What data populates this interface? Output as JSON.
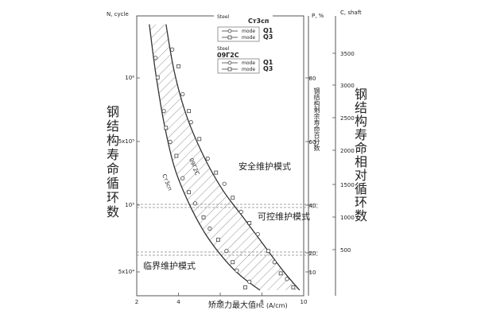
{
  "chart_data": {
    "type": "scatter",
    "left_axis_title": "N, cycle",
    "left_axis_ticks": [
      "10⁶",
      "5x10⁵",
      "10⁵",
      "5x10⁴"
    ],
    "left_axis_label": "钢结构寿命循环数",
    "middle_axis_title": "P, %",
    "middle_axis_ticks": [
      "80",
      "60",
      "40",
      "20",
      "10"
    ],
    "middle_axis_label": "钢结构剩余寿命百分数",
    "right_axis_title": "C, shaft",
    "right_axis_ticks": [
      "3500",
      "3000",
      "2500",
      "2000",
      "1500",
      "1000",
      "500"
    ],
    "right_axis_label": "钢结构寿命相对循环数",
    "x_axis_ticks": [
      "2",
      "4",
      "6",
      "8",
      "10"
    ],
    "x_axis_label": "矫顽力最大值",
    "x_axis_unit": "Hc (A/cm)",
    "xlim": [
      2,
      10
    ],
    "ylim": [
      0,
      100
    ],
    "legend": {
      "group1_title": "Steel",
      "group1_name": "Ст3сп",
      "group1_entries": [
        {
          "mode": "mode",
          "label": "Q1",
          "marker": "circle"
        },
        {
          "mode": "mode",
          "label": "Q3",
          "marker": "square"
        }
      ],
      "group2_title": "Steel",
      "group2_name": "09Г2С",
      "group2_entries": [
        {
          "mode": "mode",
          "label": "Q1",
          "marker": "circle"
        },
        {
          "mode": "mode",
          "label": "Q3",
          "marker": "square"
        }
      ]
    },
    "zones": [
      {
        "label": "安全维护模式"
      },
      {
        "label": "可控维护模式"
      },
      {
        "label": "临界维护模式"
      }
    ],
    "curve_labels": [
      "Ст3сп",
      "09Г2С"
    ],
    "series": [
      {
        "name": "Ст3сп",
        "curve": [
          [
            2.6,
            97
          ],
          [
            2.9,
            80
          ],
          [
            3.3,
            62
          ],
          [
            3.8,
            46
          ],
          [
            4.5,
            33
          ],
          [
            5.3,
            22
          ],
          [
            6.2,
            13
          ],
          [
            7.0,
            7
          ],
          [
            7.9,
            2
          ]
        ],
        "points_circle": [
          [
            2.9,
            85
          ],
          [
            3.3,
            66
          ],
          [
            3.6,
            55
          ],
          [
            4.2,
            42
          ],
          [
            4.8,
            33
          ],
          [
            5.5,
            24
          ],
          [
            6.3,
            16
          ],
          [
            6.8,
            9
          ],
          [
            7.4,
            5
          ]
        ],
        "points_square": [
          [
            3.0,
            78
          ],
          [
            3.4,
            60
          ],
          [
            3.9,
            50
          ],
          [
            4.5,
            37
          ],
          [
            5.2,
            28
          ],
          [
            5.9,
            20
          ],
          [
            6.6,
            12
          ],
          [
            7.2,
            3
          ]
        ]
      },
      {
        "name": "09Г2С",
        "curve": [
          [
            3.4,
            97
          ],
          [
            3.8,
            80
          ],
          [
            4.4,
            64
          ],
          [
            5.2,
            50
          ],
          [
            6.1,
            38
          ],
          [
            7.1,
            28
          ],
          [
            8.1,
            18
          ],
          [
            9.0,
            9
          ],
          [
            9.8,
            2
          ]
        ],
        "points_circle": [
          [
            3.7,
            88
          ],
          [
            4.2,
            72
          ],
          [
            4.6,
            62
          ],
          [
            5.4,
            49
          ],
          [
            6.2,
            40
          ],
          [
            7.0,
            30
          ],
          [
            7.8,
            22
          ],
          [
            8.6,
            12
          ],
          [
            9.2,
            6
          ]
        ],
        "points_square": [
          [
            4.0,
            82
          ],
          [
            4.5,
            66
          ],
          [
            5.0,
            56
          ],
          [
            5.8,
            44
          ],
          [
            6.6,
            35
          ],
          [
            7.4,
            26
          ],
          [
            8.3,
            16
          ],
          [
            8.9,
            8
          ],
          [
            9.5,
            3
          ]
        ]
      }
    ],
    "grid": false
  }
}
